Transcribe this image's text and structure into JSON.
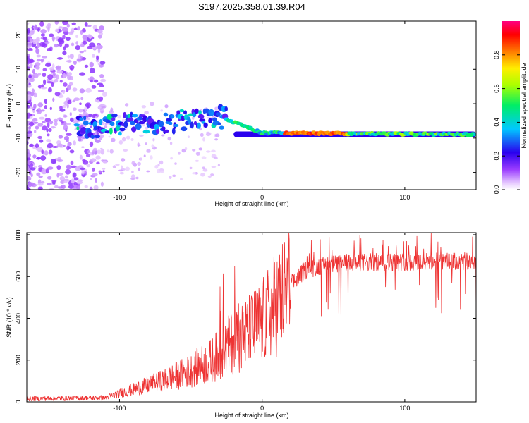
{
  "title": "S197.2025.358.01.39.R04",
  "chart_data": [
    {
      "type": "heatmap",
      "name": "spectrogram",
      "xlabel": "Height of straight line (km)",
      "ylabel": "Frequency (Hz)",
      "xlim": [
        -165,
        150
      ],
      "ylim": [
        -25,
        24
      ],
      "xticks": [
        -100,
        0,
        100
      ],
      "yticks": [
        -20,
        -10,
        0,
        10,
        20
      ],
      "signal_band": {
        "start_km": -130,
        "end_km": 150,
        "freq_start_hz": -7,
        "freq_mid_hz": -4,
        "freq_end_hz": -8.5,
        "freq_tail_hz": -9
      },
      "colorbar": {
        "label": "Normalized spectral amplitude",
        "range": [
          0,
          1
        ],
        "ticks": [
          "0.0",
          "0.2",
          "0.4",
          "0.6",
          "0.8"
        ],
        "tick_values": [
          0.0,
          0.2,
          0.4,
          0.6,
          0.8
        ]
      }
    },
    {
      "type": "line",
      "name": "snr",
      "xlabel": "Height of straight line (km)",
      "ylabel": "SNR (10 * v/v)",
      "xlim": [
        -165,
        150
      ],
      "ylim": [
        0,
        810
      ],
      "xticks": [
        -100,
        0,
        100
      ],
      "yticks": [
        0,
        200,
        400,
        600,
        800
      ],
      "color": "#ee3333",
      "envelope": [
        {
          "x": -165,
          "y": 15
        },
        {
          "x": -110,
          "y": 20
        },
        {
          "x": -90,
          "y": 60
        },
        {
          "x": -70,
          "y": 100
        },
        {
          "x": -50,
          "y": 150
        },
        {
          "x": -35,
          "y": 200
        },
        {
          "x": -28,
          "y": 240
        },
        {
          "x": -20,
          "y": 290
        },
        {
          "x": -10,
          "y": 330
        },
        {
          "x": 0,
          "y": 380
        },
        {
          "x": 10,
          "y": 470
        },
        {
          "x": 20,
          "y": 560
        },
        {
          "x": 30,
          "y": 630
        },
        {
          "x": 40,
          "y": 650
        },
        {
          "x": 60,
          "y": 665
        },
        {
          "x": 100,
          "y": 670
        },
        {
          "x": 150,
          "y": 670
        }
      ]
    }
  ]
}
